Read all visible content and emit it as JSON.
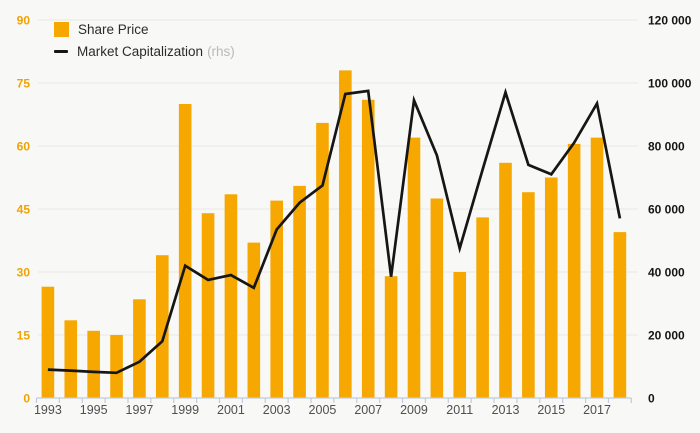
{
  "legend": {
    "share_price_label": "Share Price",
    "market_cap_label": "Market Capitalization",
    "market_cap_suffix": "(rhs)"
  },
  "colors": {
    "bar": "#F6A800",
    "line": "#161616",
    "background": "#F8F8F6",
    "grid": "#E7E7E4",
    "axis_baseline": "#C2CBDD",
    "left_axis_label": "#F0A202",
    "right_axis_label": "#161616",
    "x_axis_label": "#4F4F4F",
    "legend_text": "#2B2B2B",
    "legend_suffix": "#B9B9B9"
  },
  "chart_data": {
    "type": "bar",
    "subtype": "bar+line combo, dual axis",
    "x": [
      1993,
      1994,
      1995,
      1996,
      1997,
      1998,
      1999,
      2000,
      2001,
      2002,
      2003,
      2004,
      2005,
      2006,
      2007,
      2008,
      2009,
      2010,
      2011,
      2012,
      2013,
      2014,
      2015,
      2016,
      2017,
      2018
    ],
    "series": [
      {
        "name": "Share Price",
        "type": "bar",
        "axis": "left",
        "values": [
          26.5,
          18.5,
          16,
          15,
          23.5,
          34,
          70,
          44,
          48.5,
          37,
          47,
          50.5,
          65.5,
          78,
          71,
          29,
          62,
          47.5,
          30,
          43,
          56,
          49,
          52.5,
          60.5,
          62,
          39.5
        ]
      },
      {
        "name": "Market Capitalization",
        "type": "line",
        "axis": "right",
        "values": [
          9000,
          8700,
          8300,
          8000,
          11500,
          18000,
          42000,
          37500,
          39000,
          35000,
          53500,
          62000,
          67500,
          96500,
          97500,
          38500,
          94500,
          77000,
          47500,
          72500,
          97000,
          74000,
          71000,
          81000,
          93500,
          57000
        ]
      }
    ],
    "left_axis": {
      "range": [
        0,
        90
      ],
      "tick_values": [
        0,
        15,
        30,
        45,
        60,
        75,
        90
      ],
      "tick_labels": [
        "0",
        "15",
        "30",
        "45",
        "60",
        "75",
        "90"
      ]
    },
    "right_axis": {
      "range": [
        0,
        120000
      ],
      "tick_values": [
        0,
        20000,
        40000,
        60000,
        80000,
        100000,
        120000
      ],
      "tick_labels": [
        "0",
        "20 000",
        "40 000",
        "60 000",
        "80 000",
        "100 000",
        "120 000"
      ]
    },
    "x_tick_labels": [
      "1993",
      "1995",
      "1997",
      "1999",
      "2001",
      "2003",
      "2005",
      "2007",
      "2009",
      "2011",
      "2013",
      "2015",
      "2017"
    ],
    "grid": true,
    "legend_position": "top-left",
    "title": "",
    "xlabel": "",
    "ylabel": ""
  }
}
